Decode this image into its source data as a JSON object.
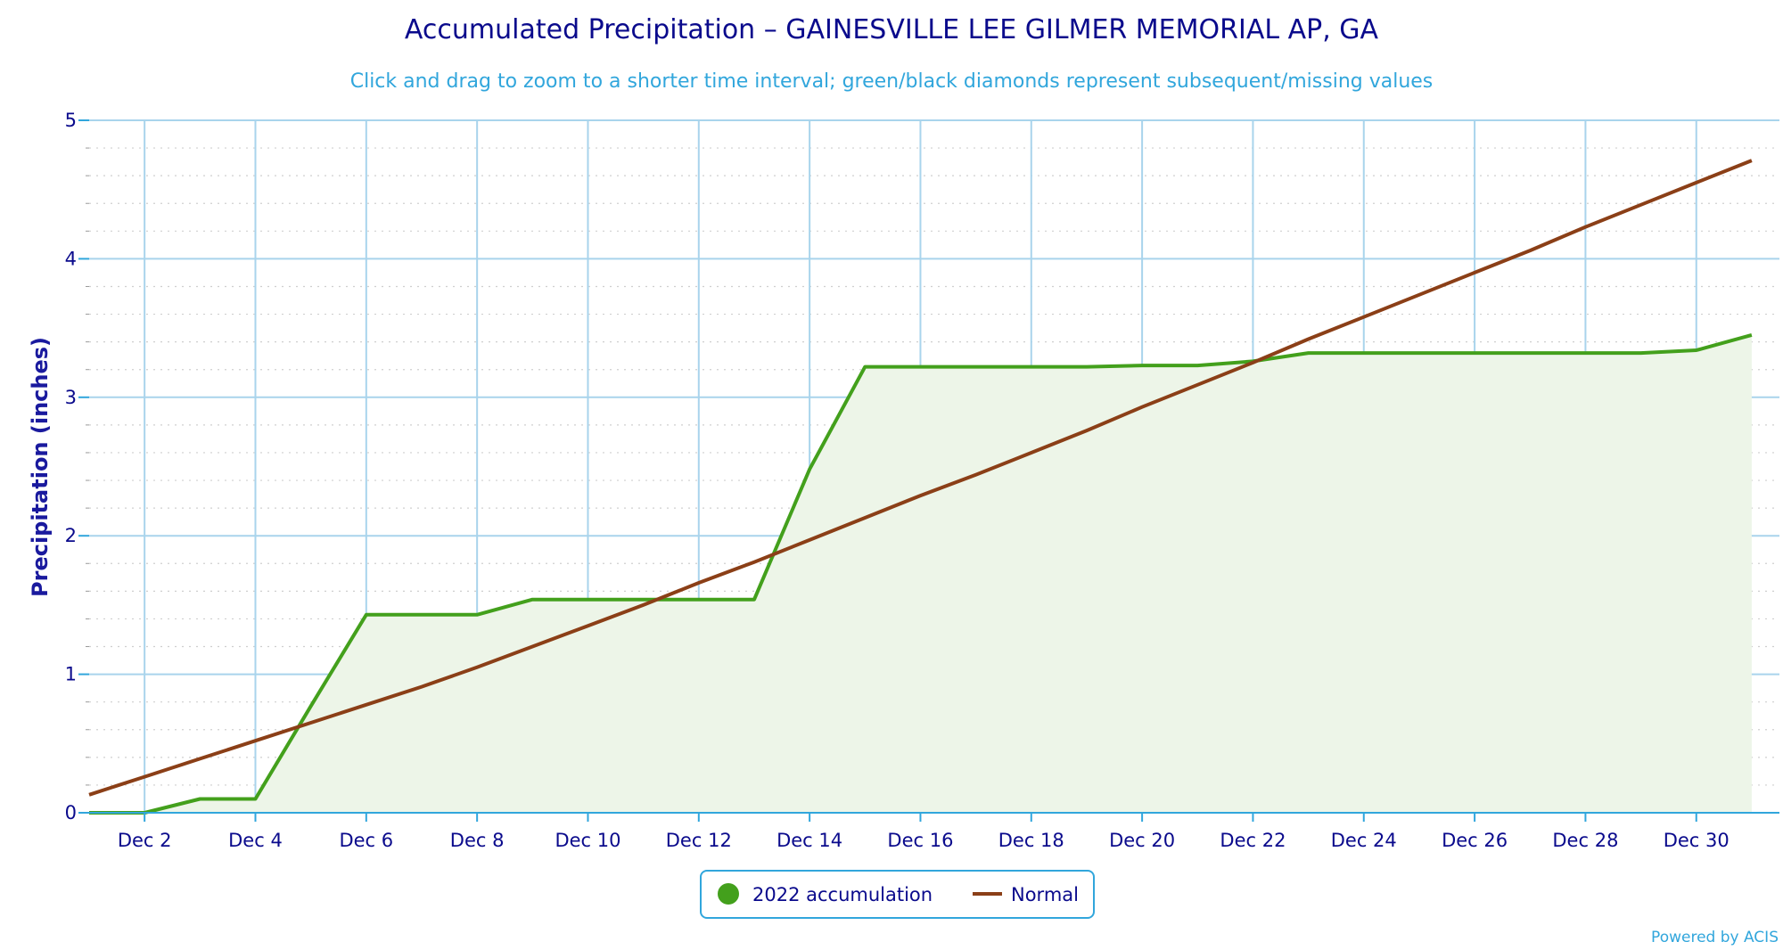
{
  "chart_data": {
    "type": "area",
    "title": "Accumulated Precipitation – GAINESVILLE LEE GILMER MEMORIAL AP, GA",
    "subtitle": "Click and drag to zoom to a shorter time interval; green/black diamonds represent subsequent/missing values",
    "ylabel": "Precipitation (inches)",
    "xlabel": "",
    "ylim": [
      0,
      5
    ],
    "y_ticks": [
      "0",
      "1",
      "2",
      "3",
      "4",
      "5"
    ],
    "x_range": [
      "Dec 1",
      "Dec 31"
    ],
    "x_ticks": [
      "Dec 2",
      "Dec 4",
      "Dec 6",
      "Dec 8",
      "Dec 10",
      "Dec 12",
      "Dec 14",
      "Dec 16",
      "Dec 18",
      "Dec 20",
      "Dec 22",
      "Dec 24",
      "Dec 26",
      "Dec 28",
      "Dec 30"
    ],
    "grid": true,
    "legend_position": "bottom-center",
    "series": [
      {
        "name": "2022 accumulation",
        "color": "#43a01c",
        "fill": "#edf5e8",
        "x": [
          "Dec 1",
          "Dec 2",
          "Dec 3",
          "Dec 4",
          "Dec 5",
          "Dec 6",
          "Dec 7",
          "Dec 8",
          "Dec 9",
          "Dec 10",
          "Dec 11",
          "Dec 12",
          "Dec 13",
          "Dec 14",
          "Dec 15",
          "Dec 16",
          "Dec 17",
          "Dec 18",
          "Dec 19",
          "Dec 20",
          "Dec 21",
          "Dec 22",
          "Dec 23",
          "Dec 24",
          "Dec 25",
          "Dec 26",
          "Dec 27",
          "Dec 28",
          "Dec 29",
          "Dec 30",
          "Dec 31"
        ],
        "values": [
          0.0,
          0.0,
          0.1,
          0.1,
          0.77,
          1.43,
          1.43,
          1.43,
          1.54,
          1.54,
          1.54,
          1.54,
          1.54,
          2.48,
          3.22,
          3.22,
          3.22,
          3.22,
          3.22,
          3.23,
          3.23,
          3.26,
          3.32,
          3.32,
          3.32,
          3.32,
          3.32,
          3.32,
          3.32,
          3.34,
          3.45
        ]
      },
      {
        "name": "Normal",
        "color": "#8b3f17",
        "x": [
          "Dec 1",
          "Dec 2",
          "Dec 3",
          "Dec 4",
          "Dec 5",
          "Dec 6",
          "Dec 7",
          "Dec 8",
          "Dec 9",
          "Dec 10",
          "Dec 11",
          "Dec 12",
          "Dec 13",
          "Dec 14",
          "Dec 15",
          "Dec 16",
          "Dec 17",
          "Dec 18",
          "Dec 19",
          "Dec 20",
          "Dec 21",
          "Dec 22",
          "Dec 23",
          "Dec 24",
          "Dec 25",
          "Dec 26",
          "Dec 27",
          "Dec 28",
          "Dec 29",
          "Dec 30",
          "Dec 31"
        ],
        "values": [
          0.13,
          0.26,
          0.39,
          0.52,
          0.65,
          0.78,
          0.91,
          1.05,
          1.2,
          1.35,
          1.5,
          1.66,
          1.81,
          1.97,
          2.13,
          2.29,
          2.44,
          2.6,
          2.76,
          2.93,
          3.09,
          3.25,
          3.42,
          3.58,
          3.74,
          3.9,
          4.06,
          4.23,
          4.39,
          4.55,
          4.71
        ]
      }
    ]
  },
  "credits": "Powered by ACIS"
}
